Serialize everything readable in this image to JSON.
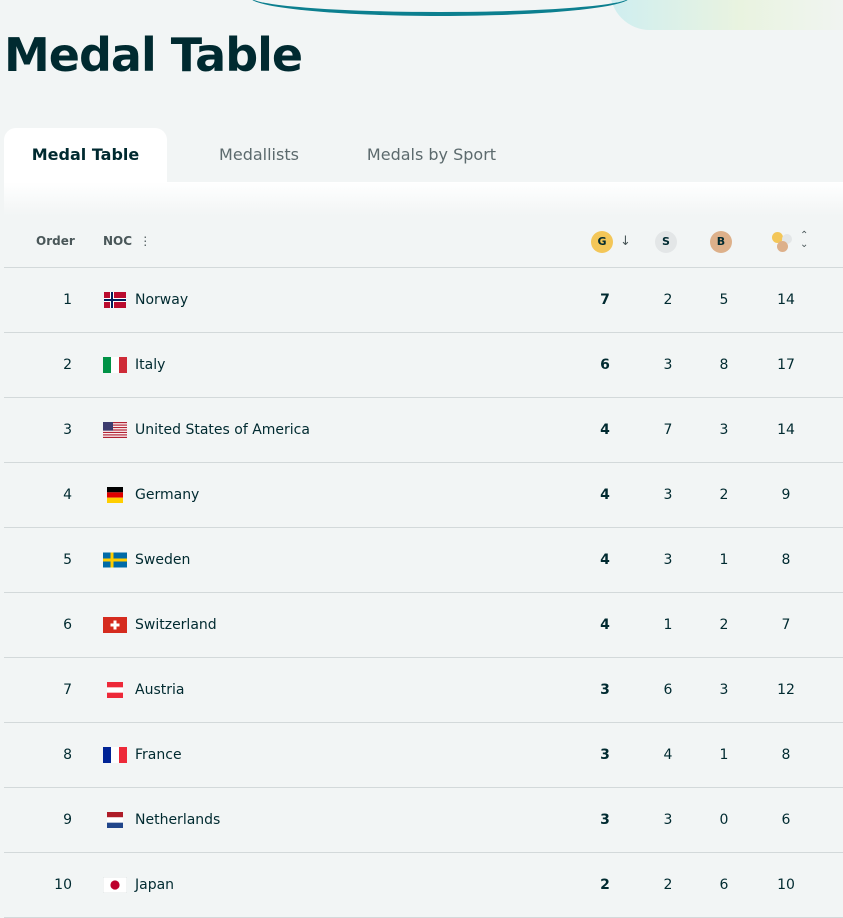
{
  "page_title": "Medal Table",
  "tabs": [
    {
      "label": "Medal Table",
      "active": true
    },
    {
      "label": "Medallists",
      "active": false
    },
    {
      "label": "Medals by Sport",
      "active": false
    }
  ],
  "columns": {
    "order": "Order",
    "noc": "NOC",
    "noc_icon": "column-options-icon",
    "gold": "G",
    "silver": "S",
    "bronze": "B",
    "sort_down": "↓",
    "sort_both": "⌃⌄",
    "menu_glyph": "⋮"
  },
  "colors": {
    "gold": "#f3c658",
    "silver": "#e3e6e7",
    "bronze": "#ddb08a",
    "text": "#002a30"
  },
  "rows": [
    {
      "order": "1",
      "noc": "Norway",
      "flag": "norway-flag-icon",
      "gold": "7",
      "silver": "2",
      "bronze": "5",
      "total": "14"
    },
    {
      "order": "2",
      "noc": "Italy",
      "flag": "italy-flag-icon",
      "gold": "6",
      "silver": "3",
      "bronze": "8",
      "total": "17"
    },
    {
      "order": "3",
      "noc": "United States of America",
      "flag": "usa-flag-icon",
      "gold": "4",
      "silver": "7",
      "bronze": "3",
      "total": "14"
    },
    {
      "order": "4",
      "noc": "Germany",
      "flag": "germany-flag-icon",
      "gold": "4",
      "silver": "3",
      "bronze": "2",
      "total": "9"
    },
    {
      "order": "5",
      "noc": "Sweden",
      "flag": "sweden-flag-icon",
      "gold": "4",
      "silver": "3",
      "bronze": "1",
      "total": "8"
    },
    {
      "order": "6",
      "noc": "Switzerland",
      "flag": "switzerland-flag-icon",
      "gold": "4",
      "silver": "1",
      "bronze": "2",
      "total": "7"
    },
    {
      "order": "7",
      "noc": "Austria",
      "flag": "austria-flag-icon",
      "gold": "3",
      "silver": "6",
      "bronze": "3",
      "total": "12"
    },
    {
      "order": "8",
      "noc": "France",
      "flag": "france-flag-icon",
      "gold": "3",
      "silver": "4",
      "bronze": "1",
      "total": "8"
    },
    {
      "order": "9",
      "noc": "Netherlands",
      "flag": "netherlands-flag-icon",
      "gold": "3",
      "silver": "3",
      "bronze": "0",
      "total": "6"
    },
    {
      "order": "10",
      "noc": "Japan",
      "flag": "japan-flag-icon",
      "gold": "2",
      "silver": "2",
      "bronze": "6",
      "total": "10"
    }
  ]
}
